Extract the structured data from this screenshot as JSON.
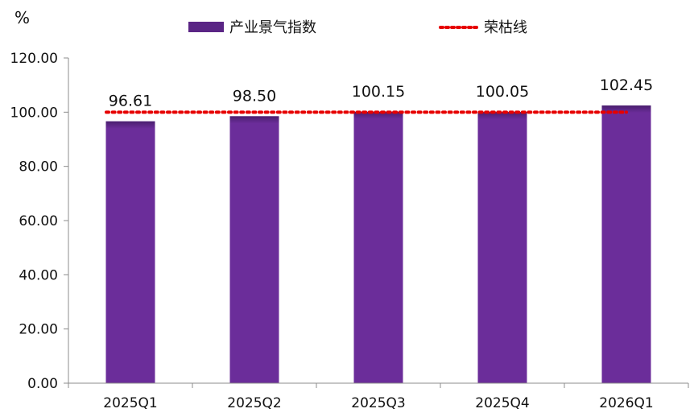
{
  "chart_data": {
    "type": "bar",
    "y_unit": "%",
    "categories": [
      "2025Q1",
      "2025Q2",
      "2025Q3",
      "2025Q4",
      "2026Q1"
    ],
    "series": [
      {
        "name": "产业景气指数",
        "type": "bar",
        "values": [
          96.61,
          98.5,
          100.15,
          100.05,
          102.45
        ],
        "value_labels": [
          "96.61",
          "98.50",
          "100.15",
          "100.05",
          "102.45"
        ],
        "color": "#6b2d9a"
      },
      {
        "name": "荣枯线",
        "type": "line",
        "style": "dotted",
        "values": [
          100,
          100,
          100,
          100,
          100
        ],
        "color": "#e60000"
      }
    ],
    "ylim": [
      0,
      120
    ],
    "yticks": [
      0,
      20,
      40,
      60,
      80,
      100,
      120
    ],
    "ytick_labels": [
      "0.00",
      "20.00",
      "40.00",
      "60.00",
      "80.00",
      "100.00",
      "120.00"
    ],
    "grid": false,
    "legend_position": "top"
  }
}
